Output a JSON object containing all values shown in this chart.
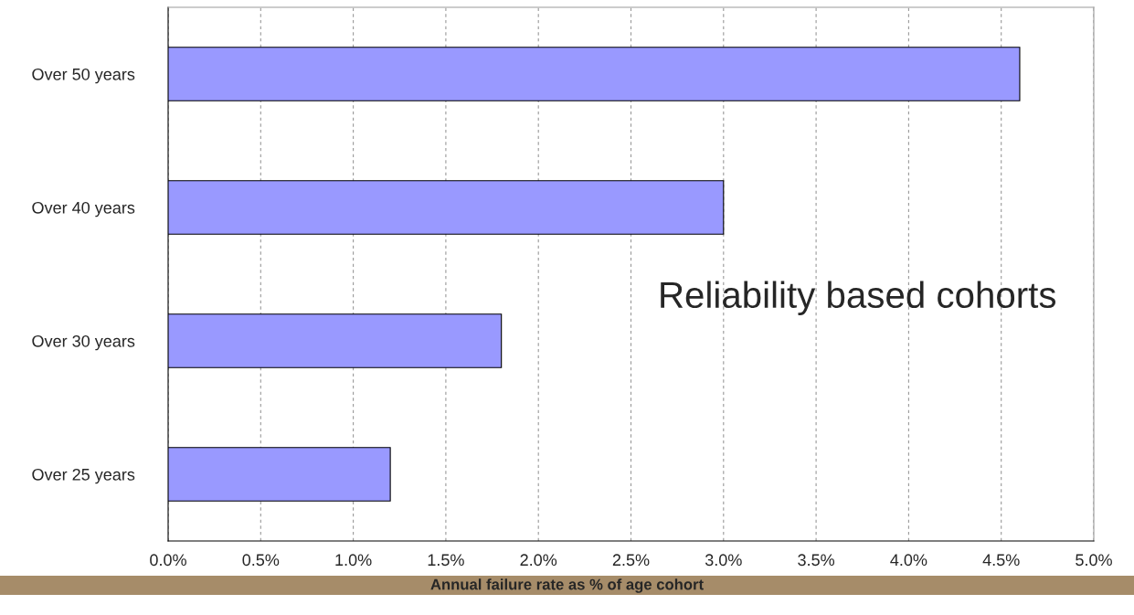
{
  "chart_data": {
    "type": "bar",
    "orientation": "horizontal",
    "categories": [
      "Over 50 years",
      "Over 40 years",
      "Over 30 years",
      "Over 25 years"
    ],
    "values": [
      4.6,
      3.0,
      1.8,
      1.2
    ],
    "color": "#9999ff",
    "xlim": [
      0,
      5
    ],
    "xticks": [
      {
        "value": 0,
        "label": "0.0%"
      },
      {
        "value": 0.5,
        "label": "0.5%"
      },
      {
        "value": 1,
        "label": "1.0%"
      },
      {
        "value": 1.5,
        "label": "1.5%"
      },
      {
        "value": 2,
        "label": "2.0%"
      },
      {
        "value": 2.5,
        "label": "2.5%"
      },
      {
        "value": 3,
        "label": "3.0%"
      },
      {
        "value": 3.5,
        "label": "3.5%"
      },
      {
        "value": 4,
        "label": "4.0%"
      },
      {
        "value": 4.5,
        "label": "4.5%"
      },
      {
        "value": 5,
        "label": "5.0%"
      }
    ],
    "xlabel": "Annual failure rate as % of age cohort",
    "annotations": [
      "Reliability based cohorts"
    ],
    "grid": "x",
    "legend": false
  }
}
